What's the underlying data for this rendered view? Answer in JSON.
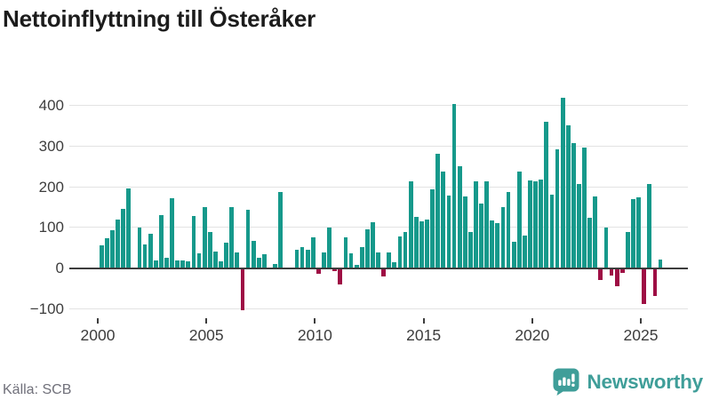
{
  "title": "Nettoinflyttning till Österåker",
  "source": "Källa: SCB",
  "brand": {
    "name": "Newsworthy",
    "color": "#3f9e99",
    "icon": "bar-chart-speech-bubble"
  },
  "colors": {
    "positive_bar": "#16998b",
    "negative_bar": "#9e0e44",
    "gridline": "#e3e3e3",
    "zero_line": "#3d3d3d",
    "axis_text": "#3d3d3d",
    "title_text": "#1c1c1c",
    "source_text": "#70707a",
    "background": "#ffffff"
  },
  "chart_data": {
    "type": "bar",
    "title": "Nettoinflyttning till Österåker",
    "x_unit": "quarter",
    "start_year": 2000,
    "quarters_per_year": 4,
    "x_tick_labels": [
      "2000",
      "2005",
      "2010",
      "2015",
      "2020",
      "2025"
    ],
    "y_ticks": [
      400,
      300,
      200,
      100,
      0,
      -100
    ],
    "y_tick_labels": [
      "400",
      "300",
      "200",
      "100",
      "0",
      "−100"
    ],
    "ylim": [
      -130,
      440
    ],
    "grid": "horizontal",
    "legend": "none",
    "series": [
      {
        "name": "Nettoinflyttning",
        "values": [
          57,
          73,
          93,
          120,
          146,
          196,
          2,
          100,
          59,
          84,
          19,
          131,
          26,
          171,
          18,
          19,
          16,
          129,
          36,
          150,
          88,
          41,
          16,
          62,
          150,
          39,
          -103,
          143,
          68,
          26,
          34,
          2,
          11,
          187,
          1,
          1,
          46,
          51,
          45,
          75,
          -13,
          38,
          100,
          -7,
          -39,
          75,
          37,
          9,
          52,
          95,
          113,
          39,
          -21,
          39,
          14,
          77,
          88,
          214,
          126,
          116,
          120,
          193,
          280,
          237,
          179,
          403,
          251,
          177,
          88,
          214,
          159,
          213,
          118,
          111,
          150,
          186,
          64,
          236,
          80,
          216,
          214,
          218,
          359,
          180,
          291,
          419,
          350,
          307,
          207,
          296,
          124,
          175,
          -29,
          99,
          -18,
          -45,
          -12,
          88,
          170,
          173,
          -89,
          207,
          -68,
          21
        ]
      }
    ]
  }
}
